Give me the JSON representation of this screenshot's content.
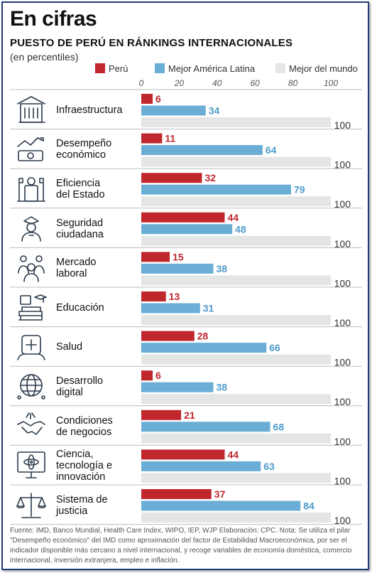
{
  "header": {
    "title": "En cifras",
    "subtitle": "PUESTO DE PERÚ EN RÁNKINGS INTERNACIONALES",
    "unit": "(en percentiles)"
  },
  "legend": [
    {
      "label": "Perú",
      "color": "#c0272d"
    },
    {
      "label": "Mejor América Latina",
      "color": "#6aaed6"
    },
    {
      "label": "Mejor del mundo",
      "color": "#e3e6e4"
    }
  ],
  "chart_data": {
    "type": "bar",
    "orientation": "horizontal",
    "xlim": [
      0,
      100
    ],
    "x_ticks": [
      0,
      20,
      40,
      60,
      80,
      100
    ],
    "categories": [
      "Infraestructura",
      "Desempeño económico",
      "Eficiencia del Estado",
      "Seguridad ciudadana",
      "Mercado laboral",
      "Educación",
      "Salud",
      "Desarrollo digital",
      "Condiciones de negocios",
      "Ciencia, tecnología e innovación",
      "Sistema de justicia"
    ],
    "category_lines": [
      [
        "Infraestructura"
      ],
      [
        "Desempeño",
        "económico"
      ],
      [
        "Eficiencia",
        "del Estado"
      ],
      [
        "Seguridad",
        "ciudadana"
      ],
      [
        "Mercado",
        "laboral"
      ],
      [
        "Educación"
      ],
      [
        "Salud"
      ],
      [
        "Desarrollo",
        "digital"
      ],
      [
        "Condiciones",
        "de negocios"
      ],
      [
        "Ciencia,",
        "tecnología e",
        "innovación"
      ],
      [
        "Sistema de",
        "justicia"
      ]
    ],
    "series": [
      {
        "name": "Perú",
        "color": "#c0272d",
        "values": [
          6,
          11,
          32,
          44,
          15,
          13,
          28,
          6,
          21,
          44,
          37
        ]
      },
      {
        "name": "Mejor América Latina",
        "color": "#6aaed6",
        "values": [
          34,
          64,
          79,
          48,
          38,
          31,
          66,
          38,
          68,
          63,
          84
        ]
      },
      {
        "name": "Mejor del mundo",
        "color": "#e3e6e4",
        "values": [
          100,
          100,
          100,
          100,
          100,
          100,
          100,
          100,
          100,
          100,
          100
        ]
      }
    ]
  },
  "icons": [
    "building-icon",
    "economy-chart-icon",
    "government-icon",
    "police-icon",
    "workers-icon",
    "books-icon",
    "health-icon",
    "digital-globe-icon",
    "handshake-icon",
    "science-monitor-icon",
    "justice-scale-icon"
  ],
  "footer": {
    "source": "Fuente: IMD, Banco Mundial, Health Care Index, WIPO, IEP, WJP Elaboración: CPC. Nota: Se utiliza el pilar \"Desempeño económico\" del IMD como aproximación del factor de Estabilidad Macroeconómica, por ser el indicador disponible más cercano a nivel internacional, y recoge variables de economía doméstica, comercio internacional, inversión extranjera, empleo e inflación."
  }
}
